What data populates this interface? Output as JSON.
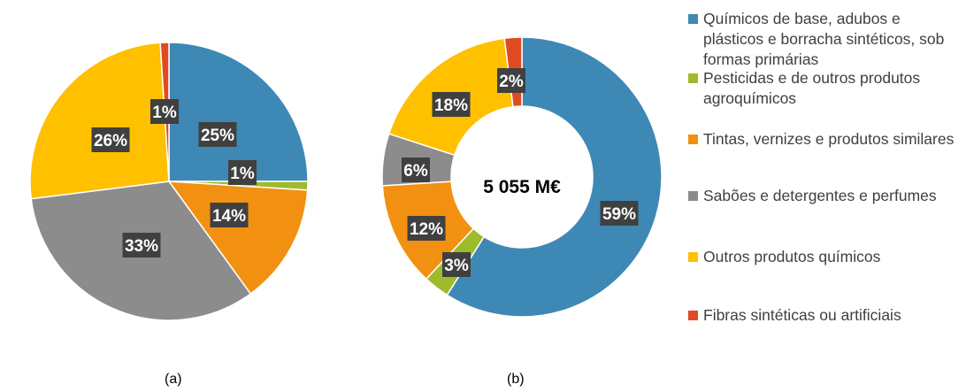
{
  "chart_data": [
    {
      "type": "pie",
      "caption": "(a)",
      "categories": [
        "Químicos de base, adubos e plásticos e borracha sintéticos, sob formas primárias",
        "Pesticidas e de outros produtos agroquímicos",
        "Tintas, vernizes e produtos similares",
        "Sabões e detergentes e perfumes",
        "Outros produtos químicos",
        "Fibras sintéticas ou artificiais"
      ],
      "values": [
        25,
        1,
        14,
        33,
        26,
        1
      ],
      "labels": [
        "25%",
        "1%",
        "14%",
        "33%",
        "26%",
        "1%"
      ]
    },
    {
      "type": "pie",
      "subtype": "donut",
      "caption": "(b)",
      "center_label": "5 055 M€",
      "categories": [
        "Químicos de base, adubos e plásticos e borracha sintéticos, sob formas primárias",
        "Pesticidas e de outros produtos agroquímicos",
        "Tintas, vernizes e produtos similares",
        "Sabões e detergentes e perfumes",
        "Outros produtos químicos",
        "Fibras sintéticas ou artificiais"
      ],
      "values": [
        59,
        3,
        12,
        6,
        18,
        2
      ],
      "labels": [
        "59%",
        "3%",
        "12%",
        "6%",
        "18%",
        "2%"
      ]
    }
  ],
  "legend": {
    "position": "right",
    "items": [
      {
        "label": "Químicos de base, adubos e plásticos e borracha sintéticos, sob formas primárias",
        "color": "#3E88B5"
      },
      {
        "label": "Pesticidas e de outros produtos agroquímicos",
        "color": "#9DBB2B"
      },
      {
        "label": "Tintas, vernizes e produtos similares",
        "color": "#F29111"
      },
      {
        "label": "Sabões e detergentes e perfumes",
        "color": "#8C8C8C"
      },
      {
        "label": "Outros produtos químicos",
        "color": "#FFC000"
      },
      {
        "label": "Fibras sintéticas ou artificiais",
        "color": "#E04A22"
      }
    ]
  },
  "colors": {
    "data_label_bg": "#404040",
    "data_label_text": "#ffffff",
    "slice_border": "#ffffff"
  }
}
